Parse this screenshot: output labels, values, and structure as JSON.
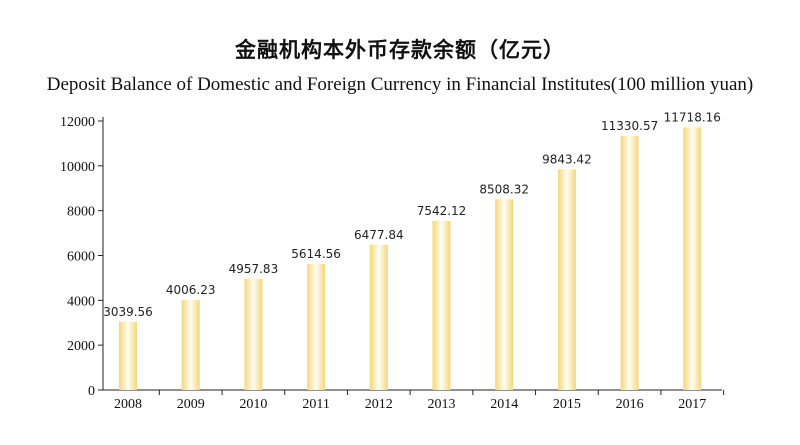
{
  "chart_data": {
    "type": "bar",
    "title": "金融机构本外币存款余额（亿元）",
    "subtitle": "Deposit Balance of Domestic and Foreign Currency in Financial Institutes(100 million yuan)",
    "categories": [
      "2008",
      "2009",
      "2010",
      "2011",
      "2012",
      "2013",
      "2014",
      "2015",
      "2016",
      "2017"
    ],
    "values": [
      3039.56,
      4006.23,
      4957.83,
      5614.56,
      6477.84,
      7542.12,
      8508.32,
      9843.42,
      11330.57,
      11718.16
    ],
    "value_labels": [
      "3039.56",
      "4006.23",
      "4957.83",
      "5614.56",
      "6477.84",
      "7542.12",
      "8508.32",
      "9843.42",
      "11330.57",
      "11718.16"
    ],
    "y_ticks": [
      "0",
      "2000",
      "4000",
      "6000",
      "8000",
      "10000",
      "12000"
    ],
    "ylim": [
      0,
      12000
    ],
    "grid": false,
    "legend": "none",
    "colors": {
      "bar_edge": "#f5df8e",
      "bar_center": "#fffdf0",
      "axis": "#222222"
    }
  }
}
